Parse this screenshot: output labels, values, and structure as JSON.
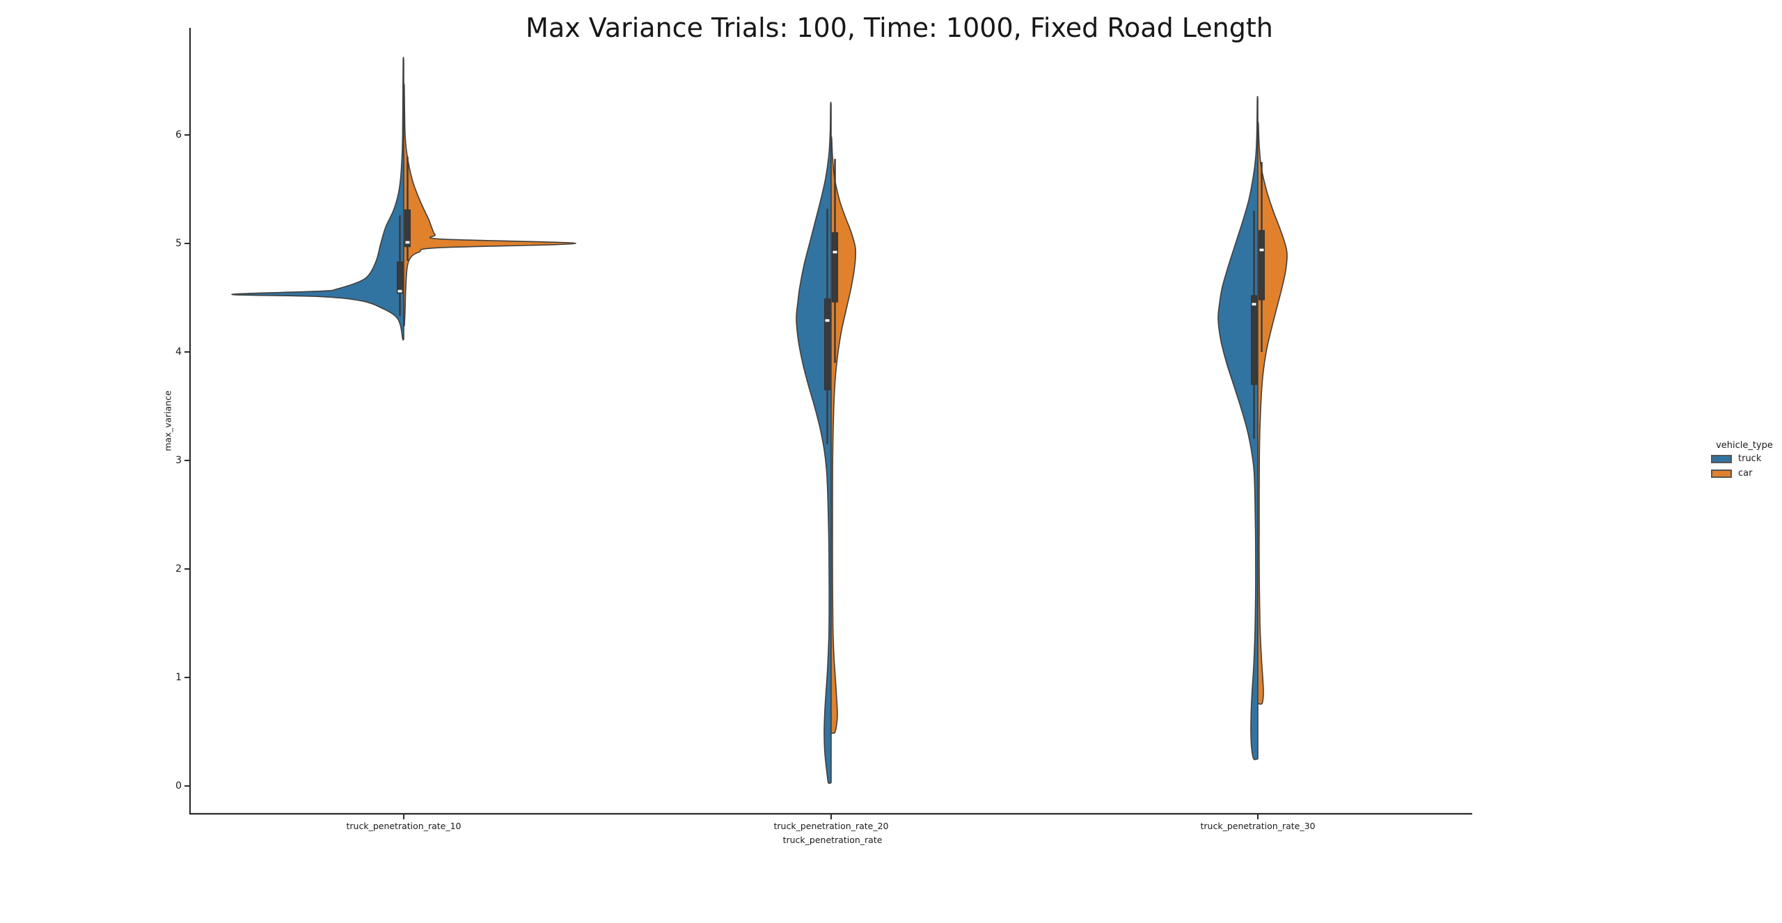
{
  "chart_data": {
    "type": "violin",
    "title": "Max Variance Trials: 100, Time: 1000, Fixed Road Length",
    "xlabel": "truck_penetration_rate",
    "ylabel": "max_variance",
    "categories": [
      "truck_penetration_rate_10",
      "truck_penetration_rate_20",
      "truck_penetration_rate_30"
    ],
    "yticks": [
      "0",
      "1",
      "2",
      "3",
      "4",
      "5",
      "6"
    ],
    "ylim": [
      -0.27,
      6.9
    ],
    "grid": false,
    "legend": {
      "title": "vehicle_type",
      "position": "right",
      "entries": [
        {
          "label": "truck",
          "color": "#3274a1"
        },
        {
          "label": "car",
          "color": "#e1812c"
        }
      ]
    },
    "style": {
      "edge_color": "#3f3f3f",
      "box_color": "#3a3a3a",
      "median_color": "#ffffff",
      "axis_color": "#2b2b2b"
    },
    "profile_width_units": "px_half_width",
    "violins": [
      {
        "category": "truck_penetration_rate_10",
        "vehicle": "truck",
        "side": "left",
        "color": "#3274a1",
        "box": {
          "whisker_low": 4.33,
          "q1": 4.54,
          "median": 4.56,
          "q3": 4.83,
          "whisker_high": 5.26
        },
        "profile": [
          [
            6.69,
            0.8
          ],
          [
            6.35,
            1.2
          ],
          [
            6.0,
            1.6
          ],
          [
            5.8,
            2.5
          ],
          [
            5.6,
            4.5
          ],
          [
            5.45,
            8
          ],
          [
            5.3,
            15
          ],
          [
            5.15,
            26
          ],
          [
            5.0,
            33
          ],
          [
            4.85,
            39
          ],
          [
            4.72,
            49
          ],
          [
            4.65,
            63
          ],
          [
            4.58,
            96
          ],
          [
            4.56,
            120
          ],
          [
            4.53,
            247
          ],
          [
            4.51,
            120
          ],
          [
            4.47,
            60
          ],
          [
            4.4,
            30
          ],
          [
            4.33,
            12
          ],
          [
            4.25,
            5
          ],
          [
            4.12,
            1.5
          ]
        ]
      },
      {
        "category": "truck_penetration_rate_10",
        "vehicle": "car",
        "side": "right",
        "color": "#e1812c",
        "box": {
          "whisker_low": 4.84,
          "q1": 4.97,
          "median": 5.01,
          "q3": 5.31,
          "whisker_high": 5.8
        },
        "profile": [
          [
            6.45,
            0.8
          ],
          [
            6.2,
            1.3
          ],
          [
            6.0,
            2
          ],
          [
            5.85,
            4
          ],
          [
            5.7,
            8
          ],
          [
            5.55,
            14
          ],
          [
            5.4,
            23
          ],
          [
            5.3,
            30
          ],
          [
            5.22,
            36
          ],
          [
            5.15,
            40
          ],
          [
            5.08,
            45
          ],
          [
            5.04,
            55
          ],
          [
            5.0,
            247
          ],
          [
            4.96,
            50
          ],
          [
            4.92,
            22
          ],
          [
            4.87,
            10
          ],
          [
            4.78,
            5
          ],
          [
            4.6,
            3
          ],
          [
            4.4,
            2
          ],
          [
            4.25,
            1
          ]
        ]
      },
      {
        "category": "truck_penetration_rate_20",
        "vehicle": "truck",
        "side": "left",
        "color": "#3274a1",
        "box": {
          "whisker_low": 3.15,
          "q1": 3.65,
          "median": 4.29,
          "q3": 4.49,
          "whisker_high": 5.32
        },
        "profile": [
          [
            6.28,
            0.8
          ],
          [
            6.0,
            1.5
          ],
          [
            5.8,
            3.5
          ],
          [
            5.6,
            8
          ],
          [
            5.4,
            15
          ],
          [
            5.2,
            23
          ],
          [
            5.0,
            31
          ],
          [
            4.8,
            39
          ],
          [
            4.6,
            45
          ],
          [
            4.45,
            48
          ],
          [
            4.3,
            50
          ],
          [
            4.1,
            47
          ],
          [
            3.9,
            41
          ],
          [
            3.7,
            33
          ],
          [
            3.5,
            24
          ],
          [
            3.3,
            16
          ],
          [
            3.1,
            10
          ],
          [
            2.9,
            6.5
          ],
          [
            2.6,
            4.5
          ],
          [
            2.2,
            3.2
          ],
          [
            1.8,
            2.8
          ],
          [
            1.4,
            3.2
          ],
          [
            1.1,
            5
          ],
          [
            0.9,
            7
          ],
          [
            0.7,
            9
          ],
          [
            0.5,
            10
          ],
          [
            0.3,
            9
          ],
          [
            0.12,
            6
          ],
          [
            0.03,
            4
          ]
        ]
      },
      {
        "category": "truck_penetration_rate_20",
        "vehicle": "car",
        "side": "right",
        "color": "#e1812c",
        "box": {
          "whisker_low": 3.9,
          "q1": 4.46,
          "median": 4.92,
          "q3": 5.1,
          "whisker_high": 5.78
        },
        "profile": [
          [
            5.97,
            0.8
          ],
          [
            5.8,
            2
          ],
          [
            5.6,
            5
          ],
          [
            5.4,
            12
          ],
          [
            5.25,
            20
          ],
          [
            5.1,
            29
          ],
          [
            4.95,
            35
          ],
          [
            4.8,
            34
          ],
          [
            4.6,
            29
          ],
          [
            4.4,
            22
          ],
          [
            4.2,
            15
          ],
          [
            4.0,
            10
          ],
          [
            3.8,
            6.5
          ],
          [
            3.6,
            4.5
          ],
          [
            3.3,
            3
          ],
          [
            3.0,
            2.2
          ],
          [
            2.5,
            2
          ],
          [
            2.0,
            2
          ],
          [
            1.5,
            2.5
          ],
          [
            1.2,
            4
          ],
          [
            1.0,
            6
          ],
          [
            0.8,
            8
          ],
          [
            0.65,
            9
          ],
          [
            0.55,
            7.5
          ],
          [
            0.49,
            5
          ]
        ]
      },
      {
        "category": "truck_penetration_rate_30",
        "vehicle": "truck",
        "side": "left",
        "color": "#3274a1",
        "box": {
          "whisker_low": 3.2,
          "q1": 3.7,
          "median": 4.44,
          "q3": 4.52,
          "whisker_high": 5.3
        },
        "profile": [
          [
            6.33,
            0.8
          ],
          [
            6.0,
            1.5
          ],
          [
            5.8,
            3
          ],
          [
            5.6,
            7
          ],
          [
            5.4,
            13
          ],
          [
            5.2,
            22
          ],
          [
            5.0,
            32
          ],
          [
            4.8,
            42
          ],
          [
            4.6,
            51
          ],
          [
            4.45,
            55
          ],
          [
            4.3,
            57
          ],
          [
            4.1,
            53
          ],
          [
            3.9,
            45
          ],
          [
            3.7,
            35
          ],
          [
            3.5,
            25
          ],
          [
            3.3,
            16
          ],
          [
            3.1,
            9.5
          ],
          [
            2.9,
            5.5
          ],
          [
            2.6,
            4
          ],
          [
            2.2,
            3.2
          ],
          [
            1.8,
            3.2
          ],
          [
            1.4,
            4.2
          ],
          [
            1.1,
            6
          ],
          [
            0.9,
            8
          ],
          [
            0.7,
            9.5
          ],
          [
            0.5,
            10
          ],
          [
            0.35,
            9
          ],
          [
            0.25,
            6
          ]
        ]
      },
      {
        "category": "truck_penetration_rate_30",
        "vehicle": "car",
        "side": "right",
        "color": "#e1812c",
        "box": {
          "whisker_low": 4.0,
          "q1": 4.48,
          "median": 4.94,
          "q3": 5.12,
          "whisker_high": 5.75
        },
        "profile": [
          [
            6.1,
            0.8
          ],
          [
            5.9,
            2
          ],
          [
            5.7,
            5
          ],
          [
            5.5,
            12
          ],
          [
            5.3,
            22
          ],
          [
            5.15,
            31
          ],
          [
            5.0,
            39
          ],
          [
            4.9,
            42
          ],
          [
            4.75,
            40
          ],
          [
            4.6,
            35
          ],
          [
            4.4,
            27
          ],
          [
            4.2,
            19
          ],
          [
            4.0,
            12
          ],
          [
            3.8,
            7.5
          ],
          [
            3.6,
            5
          ],
          [
            3.3,
            3
          ],
          [
            3.0,
            2.2
          ],
          [
            2.5,
            2
          ],
          [
            2.0,
            2
          ],
          [
            1.5,
            3
          ],
          [
            1.2,
            5
          ],
          [
            1.0,
            7
          ],
          [
            0.85,
            8
          ],
          [
            0.76,
            6
          ]
        ]
      }
    ]
  }
}
